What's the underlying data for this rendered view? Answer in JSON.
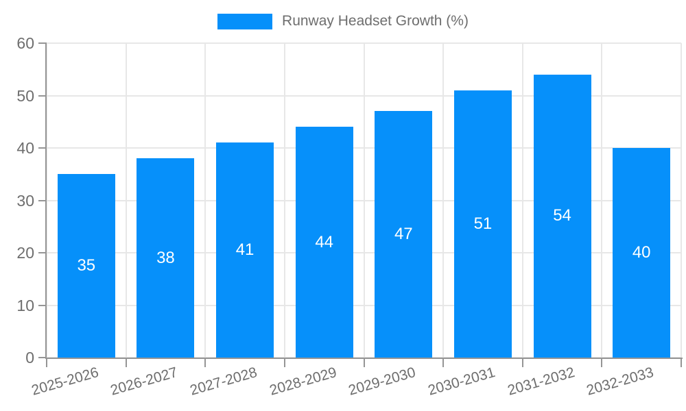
{
  "chart_data": {
    "type": "bar",
    "title": "Runway Headset Growth (%)",
    "legend": {
      "label": "Runway Headset Growth (%)",
      "position": "top"
    },
    "categories": [
      "2025-2026",
      "2026-2027",
      "2027-2028",
      "2028-2029",
      "2029-2030",
      "2030-2031",
      "2031-2032",
      "2032-2033"
    ],
    "values": [
      35,
      38,
      41,
      44,
      47,
      51,
      54,
      40
    ],
    "xlabel": "",
    "ylabel": "",
    "ylim": [
      0,
      60
    ],
    "yticks": [
      0,
      10,
      20,
      30,
      40,
      50,
      60
    ],
    "grid": true,
    "value_labels_inside_bars": true,
    "x_tick_rotation_deg": -16,
    "colors": {
      "bar": "#0690fa",
      "value_label": "#ffffff",
      "grid": "#e7e7e7",
      "axis": "#959595",
      "tick": "#959595",
      "text": "#6e6e6e",
      "background": "#ffffff"
    }
  }
}
